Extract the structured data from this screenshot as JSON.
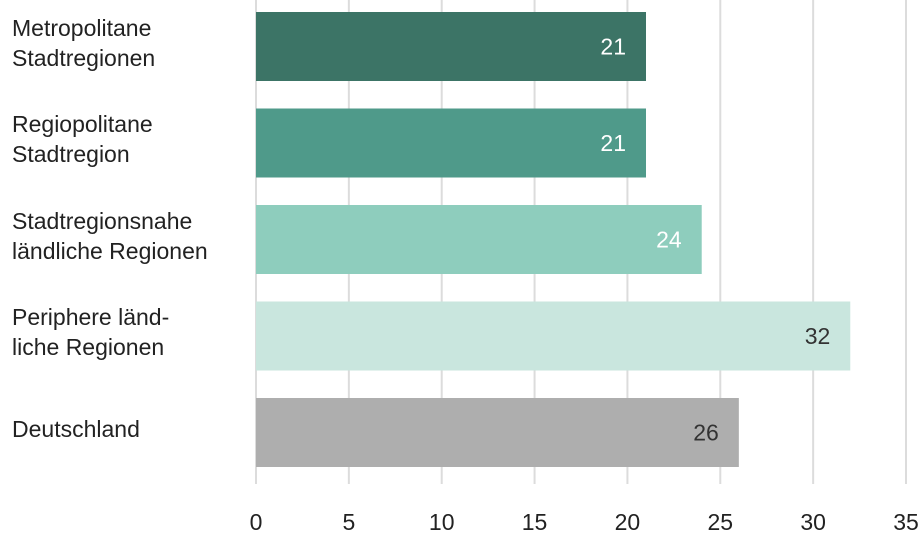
{
  "chart_data": {
    "type": "bar",
    "orientation": "horizontal",
    "categories": [
      "Metropolitane\nStadtregionen",
      "Regiopolitane\nStadtregion",
      "Stadtregionsnahe\nländliche Regionen",
      "Periphere länd-\nliche Regionen",
      "Deutschland"
    ],
    "values": [
      21,
      21,
      24,
      32,
      26
    ],
    "value_labels": [
      "21",
      "21",
      "24",
      "32",
      "26"
    ],
    "bar_colors": [
      "#3c7466",
      "#4f9a8a",
      "#8ecdbd",
      "#c9e6de",
      "#aeaeae"
    ],
    "value_label_colors": [
      "#ffffff",
      "#ffffff",
      "#ffffff",
      "#333333",
      "#333333"
    ],
    "xlim": [
      0,
      35
    ],
    "xticks": [
      "0",
      "5",
      "10",
      "15",
      "20",
      "25",
      "30",
      "35"
    ],
    "grid": true,
    "title": "",
    "xlabel": "",
    "ylabel": ""
  }
}
